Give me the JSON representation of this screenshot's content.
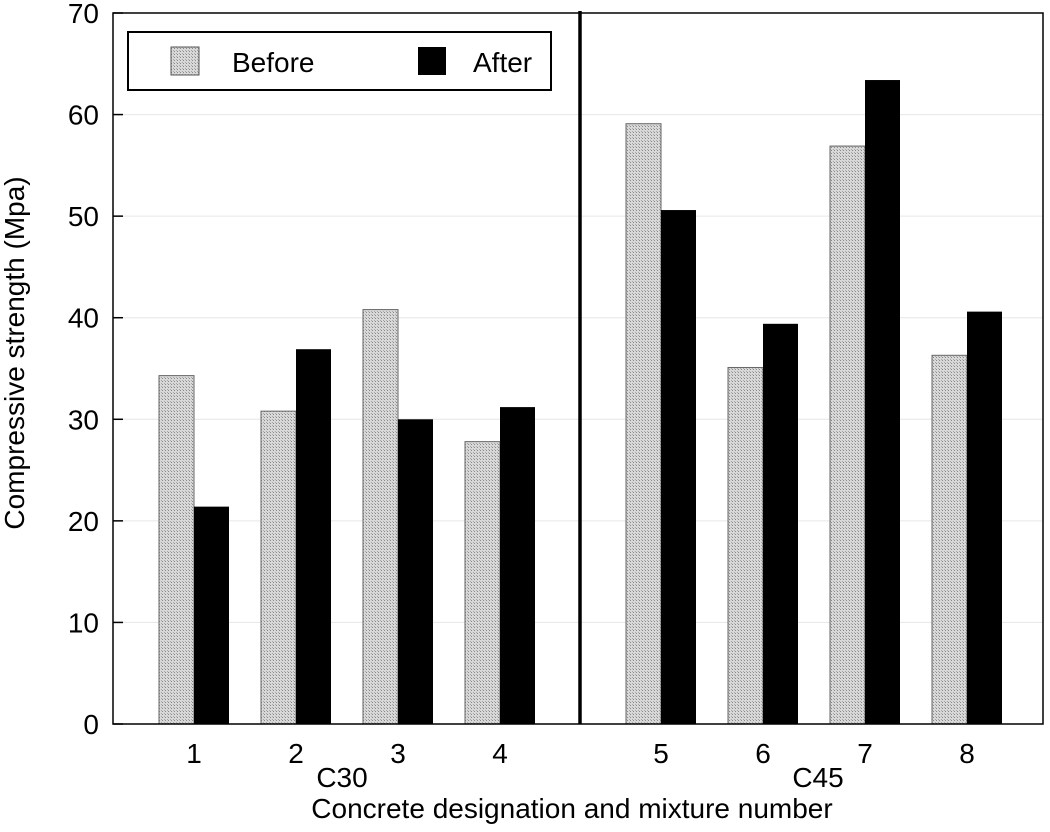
{
  "chart_data": {
    "type": "bar",
    "xlabel": "Concrete designation and mixture number",
    "ylabel": "Compressive strength (Mpa)",
    "ylim": [
      0,
      70
    ],
    "yticks": [
      0,
      10,
      20,
      30,
      40,
      50,
      60,
      70
    ],
    "grid": "horizontal, light",
    "legend": {
      "placement": "top-left",
      "entries": [
        "Before",
        "After"
      ]
    },
    "categories": [
      "1",
      "2",
      "3",
      "4",
      "5",
      "6",
      "7",
      "8"
    ],
    "series": [
      {
        "name": "Before",
        "fill": "hatched-gray",
        "values": [
          34.3,
          30.8,
          40.8,
          27.8,
          59.1,
          35.1,
          56.9,
          36.3
        ]
      },
      {
        "name": "After",
        "fill": "#000000",
        "values": [
          21.4,
          36.9,
          30.0,
          31.2,
          50.6,
          39.4,
          63.4,
          40.6
        ]
      }
    ],
    "groups": [
      {
        "label": "C30",
        "categories": [
          "1",
          "2",
          "3",
          "4"
        ]
      },
      {
        "label": "C45",
        "categories": [
          "5",
          "6",
          "7",
          "8"
        ]
      }
    ],
    "colors": {
      "before_base": "#d8d8d8",
      "before_dot": "#8a8a8a",
      "after": "#000000",
      "axis": "#000000",
      "grid": "#e6e6e6"
    }
  }
}
